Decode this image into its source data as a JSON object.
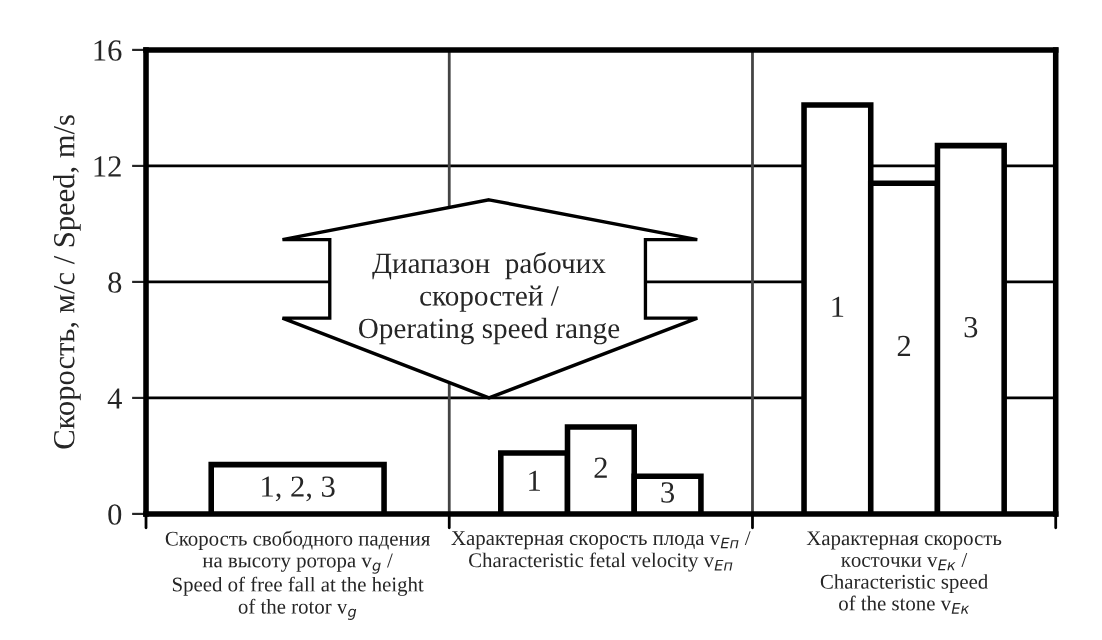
{
  "chart_data": {
    "type": "bar",
    "ylabel": "Скорость, м/с / Speed, m/s",
    "categories": [
      "Скорость свободного падения\nна высоту ротора v$_{g}$ /\nSpeed of free fall at the height\nof the rotor v$_{g}$",
      "Характерная скорость плода v$_{Еп}$ /\nCharacteristic fetal velocity v$_{Еп}$",
      "Характерная скорость\nкосточки v$_{Ек}$ /\nCharacteristic speed\nof the stone v$_{Ек}$"
    ],
    "series": [
      {
        "name": "1, 2, 3",
        "color": "#ffffff",
        "values": [
          1.7,
          null,
          null
        ]
      },
      {
        "name": "1",
        "color": "#ffffff",
        "values": [
          null,
          2.1,
          14.1
        ]
      },
      {
        "name": "2",
        "color": "#ffffff",
        "values": [
          null,
          3.0,
          11.4
        ]
      },
      {
        "name": "3",
        "color": "#ffffff",
        "values": [
          null,
          1.3,
          12.7
        ]
      }
    ],
    "ylim": [
      0,
      16
    ],
    "yticks": [
      0,
      4,
      8,
      12,
      16
    ],
    "grid": "y",
    "legend": false,
    "annotations": [
      "Диапазон  рабочих\nскоростей /\nOperating speed range"
    ]
  }
}
